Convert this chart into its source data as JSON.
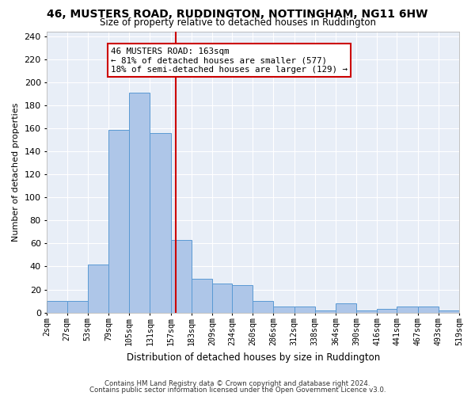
{
  "title": "46, MUSTERS ROAD, RUDDINGTON, NOTTINGHAM, NG11 6HW",
  "subtitle": "Size of property relative to detached houses in Ruddington",
  "xlabel": "Distribution of detached houses by size in Ruddington",
  "ylabel": "Number of detached properties",
  "property_size": 163,
  "annotation_line1": "46 MUSTERS ROAD: 163sqm",
  "annotation_line2": "← 81% of detached houses are smaller (577)",
  "annotation_line3": "18% of semi-detached houses are larger (129) →",
  "footer1": "Contains HM Land Registry data © Crown copyright and database right 2024.",
  "footer2": "Contains public sector information licensed under the Open Government Licence v3.0.",
  "bin_edges": [
    2,
    27,
    53,
    79,
    105,
    131,
    157,
    183,
    209,
    234,
    260,
    286,
    312,
    338,
    364,
    390,
    416,
    441,
    467,
    493,
    519
  ],
  "bin_labels": [
    "2sqm",
    "27sqm",
    "53sqm",
    "79sqm",
    "105sqm",
    "131sqm",
    "157sqm",
    "183sqm",
    "209sqm",
    "234sqm",
    "260sqm",
    "286sqm",
    "312sqm",
    "338sqm",
    "364sqm",
    "390sqm",
    "416sqm",
    "441sqm",
    "467sqm",
    "493sqm",
    "519sqm"
  ],
  "counts": [
    10,
    10,
    42,
    159,
    191,
    156,
    63,
    29,
    25,
    24,
    10,
    5,
    5,
    2,
    8,
    2,
    3,
    5,
    5,
    2
  ],
  "bar_color": "#aec6e8",
  "bar_edge_color": "#5a9ad4",
  "vline_color": "#cc0000",
  "vline_x": 163,
  "annotation_box_color": "#cc0000",
  "background_color": "#e8eef7",
  "ylim": [
    0,
    244
  ],
  "yticks": [
    0,
    20,
    40,
    60,
    80,
    100,
    120,
    140,
    160,
    180,
    200,
    220,
    240
  ]
}
